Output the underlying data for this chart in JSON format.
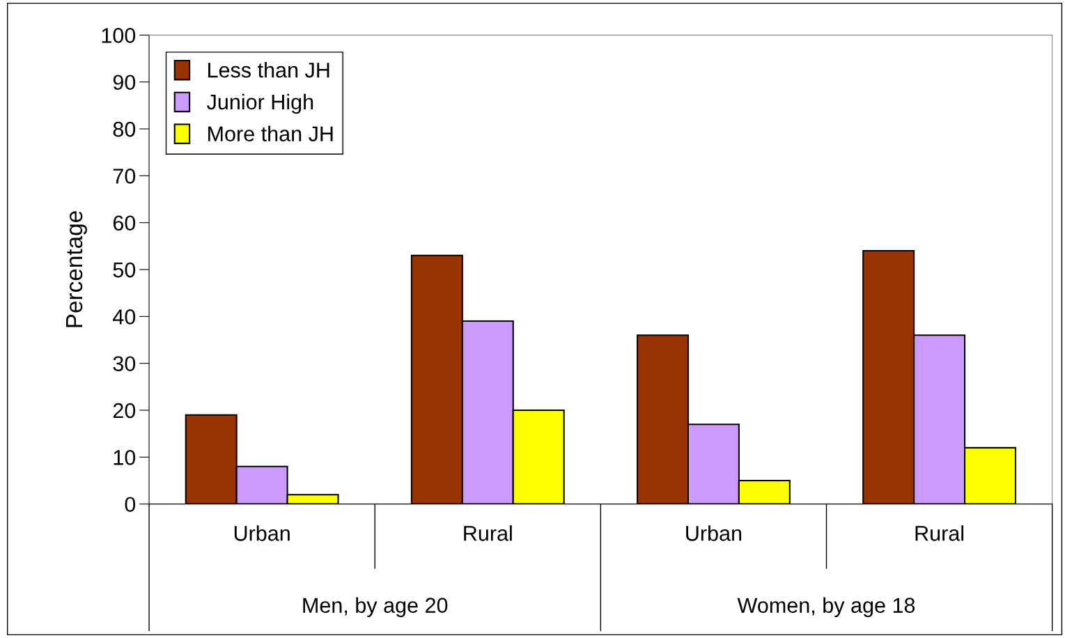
{
  "chart_data": {
    "type": "bar",
    "ylabel": "Percentage",
    "categories": [
      "Urban",
      "Rural",
      "Urban",
      "Rural"
    ],
    "annotations": [
      "Men, by age 20",
      "Women, by age 18"
    ],
    "series": [
      {
        "name": "Less than JH",
        "color": "#993300",
        "values": [
          19,
          53,
          36,
          54
        ]
      },
      {
        "name": "Junior High",
        "color": "#cc99ff",
        "values": [
          8,
          39,
          17,
          36
        ]
      },
      {
        "name": "More than JH",
        "color": "#ffff00",
        "values": [
          2,
          20,
          5,
          12
        ]
      }
    ],
    "ylim": [
      0,
      100
    ],
    "yticks": [
      0,
      10,
      20,
      30,
      40,
      50,
      60,
      70,
      80,
      90,
      100
    ],
    "grid": false,
    "legend": "top left"
  }
}
